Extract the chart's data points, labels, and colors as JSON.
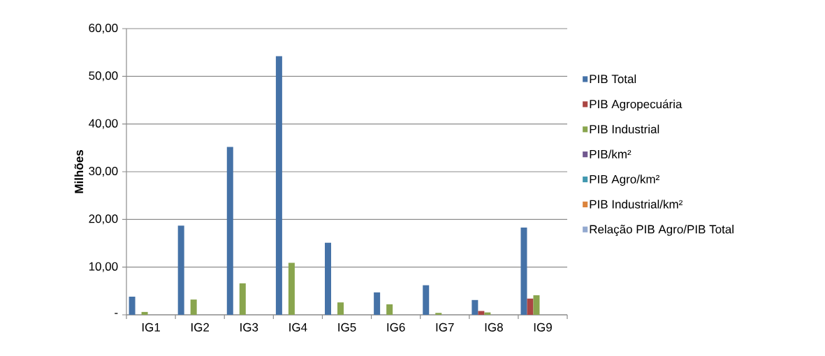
{
  "chart_data": {
    "type": "bar",
    "ylabel": "Milhões",
    "categories": [
      "IG1",
      "IG2",
      "IG3",
      "IG4",
      "IG5",
      "IG6",
      "IG7",
      "IG8",
      "IG9"
    ],
    "series": [
      {
        "name": "PIB Total",
        "color": "#4572a7",
        "values": [
          3.8,
          18.7,
          35.2,
          54.2,
          15.1,
          4.7,
          6.2,
          3.1,
          18.3
        ]
      },
      {
        "name": "PIB Agropecuária",
        "color": "#aa4643",
        "values": [
          0,
          0,
          0,
          0,
          0,
          0,
          0,
          0.8,
          3.4
        ]
      },
      {
        "name": "PIB Industrial",
        "color": "#89a54e",
        "values": [
          0.6,
          3.2,
          6.6,
          10.9,
          2.6,
          2.2,
          0.4,
          0.5,
          4.1
        ]
      },
      {
        "name": "PIB/km²",
        "color": "#71588f",
        "values": [
          0,
          0,
          0,
          0,
          0,
          0,
          0,
          0,
          0
        ]
      },
      {
        "name": "PIB Agro/km²",
        "color": "#4198af",
        "values": [
          0,
          0,
          0,
          0,
          0,
          0,
          0,
          0,
          0
        ]
      },
      {
        "name": "PIB Industrial/km²",
        "color": "#db843d",
        "values": [
          0,
          0,
          0,
          0,
          0,
          0,
          0,
          0,
          0
        ]
      },
      {
        "name": "Relação PIB Agro/PIB Total",
        "color": "#93a9cf",
        "values": [
          0,
          0,
          0,
          0,
          0,
          0,
          0,
          0,
          0
        ]
      }
    ],
    "ylim": [
      0,
      60
    ],
    "yticks": [
      {
        "value": 0,
        "label": "-"
      },
      {
        "value": 10,
        "label": "10,00"
      },
      {
        "value": 20,
        "label": "20,00"
      },
      {
        "value": 30,
        "label": "30,00"
      },
      {
        "value": 40,
        "label": "40,00"
      },
      {
        "value": 50,
        "label": "50,00"
      },
      {
        "value": 60,
        "label": "60,00"
      }
    ],
    "grid": "y",
    "legend": "right"
  }
}
